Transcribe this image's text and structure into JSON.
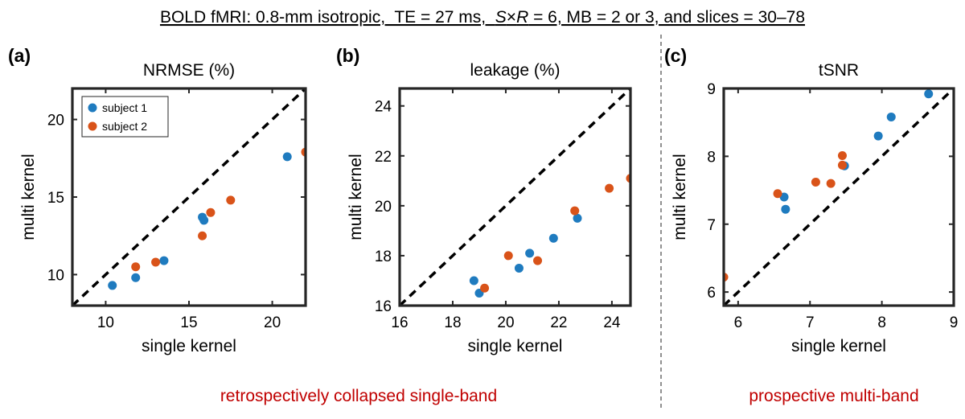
{
  "header": {
    "title_prefix": "BOLD fMRI: 0.8-mm isotropic,  TE = 27 ms,  ",
    "title_sr_s": "S",
    "title_sr_times": "×",
    "title_sr_r": "R",
    "title_suffix": " = 6, MB = 2 or 3, and slices = 30–78"
  },
  "footer": {
    "left_label": "retrospectively collapsed single-band",
    "right_label": "prospective multi-band",
    "label_color": "#c00000"
  },
  "colors": {
    "subject1": "#1f7bbf",
    "subject2": "#d95319",
    "axes": "#262626",
    "diagonal": "#000000"
  },
  "chart_data": [
    {
      "type": "scatter",
      "panel_label": "(a)",
      "title": "NRMSE (%)",
      "xlabel": "single kernel",
      "ylabel": "multi kernel",
      "xlim": [
        8,
        22
      ],
      "ylim": [
        8,
        22
      ],
      "xticks": [
        10,
        15,
        20
      ],
      "yticks": [
        10,
        15,
        20
      ],
      "xtick_labels": [
        "10",
        "15",
        "20"
      ],
      "ytick_labels": [
        "10",
        "15",
        "20"
      ],
      "diagonal": "y=x dashed",
      "legend": {
        "position": "top-left",
        "entries": [
          "subject 1",
          "subject 2"
        ]
      },
      "series": [
        {
          "name": "subject 1",
          "color_key": "subject1",
          "points": [
            [
              10.4,
              9.3
            ],
            [
              11.8,
              9.8
            ],
            [
              13.5,
              10.9
            ],
            [
              15.8,
              13.7
            ],
            [
              15.9,
              13.5
            ],
            [
              20.9,
              17.6
            ]
          ]
        },
        {
          "name": "subject 2",
          "color_key": "subject2",
          "points": [
            [
              11.8,
              10.5
            ],
            [
              13.0,
              10.8
            ],
            [
              15.8,
              12.5
            ],
            [
              16.3,
              14.0
            ],
            [
              17.5,
              14.8
            ],
            [
              22.0,
              17.9
            ]
          ]
        }
      ]
    },
    {
      "type": "scatter",
      "panel_label": "(b)",
      "title": "leakage (%)",
      "xlabel": "single kernel",
      "ylabel": "multi kernel",
      "xlim": [
        16,
        24.7
      ],
      "ylim": [
        16,
        24.7
      ],
      "xticks": [
        16,
        18,
        20,
        22,
        24
      ],
      "yticks": [
        16,
        18,
        20,
        22,
        24
      ],
      "xtick_labels": [
        "16",
        "18",
        "20",
        "22",
        "24"
      ],
      "ytick_labels": [
        "16",
        "18",
        "20",
        "22",
        "24"
      ],
      "diagonal": "y=x dashed",
      "series": [
        {
          "name": "subject 1",
          "color_key": "subject1",
          "points": [
            [
              18.8,
              17.0
            ],
            [
              19.0,
              16.5
            ],
            [
              20.5,
              17.5
            ],
            [
              20.9,
              18.1
            ],
            [
              21.8,
              18.7
            ],
            [
              22.7,
              19.5
            ]
          ]
        },
        {
          "name": "subject 2",
          "color_key": "subject2",
          "points": [
            [
              19.2,
              16.7
            ],
            [
              20.1,
              18.0
            ],
            [
              21.2,
              17.8
            ],
            [
              22.6,
              19.8
            ],
            [
              23.9,
              20.7
            ],
            [
              24.7,
              21.1
            ]
          ]
        }
      ]
    },
    {
      "type": "scatter",
      "panel_label": "(c)",
      "title": "tSNR",
      "xlabel": "single kernel",
      "ylabel": "multi kernel",
      "xlim": [
        5.8,
        9
      ],
      "ylim": [
        5.8,
        9
      ],
      "xticks": [
        6,
        7,
        8,
        9
      ],
      "yticks": [
        6,
        7,
        8,
        9
      ],
      "xtick_labels": [
        "6",
        "7",
        "8",
        "9"
      ],
      "ytick_labels": [
        "6",
        "7",
        "8",
        "9"
      ],
      "diagonal": "y=x dashed",
      "series": [
        {
          "name": "subject 1",
          "color_key": "subject1",
          "points": [
            [
              6.64,
              7.4
            ],
            [
              6.66,
              7.22
            ],
            [
              7.48,
              7.86
            ],
            [
              7.95,
              8.3
            ],
            [
              8.13,
              8.58
            ],
            [
              8.65,
              8.92
            ]
          ]
        },
        {
          "name": "subject 2",
          "color_key": "subject2",
          "points": [
            [
              5.8,
              6.22
            ],
            [
              6.55,
              7.45
            ],
            [
              7.08,
              7.62
            ],
            [
              7.29,
              7.6
            ],
            [
              7.45,
              8.01
            ],
            [
              7.45,
              7.87
            ]
          ]
        }
      ]
    }
  ]
}
